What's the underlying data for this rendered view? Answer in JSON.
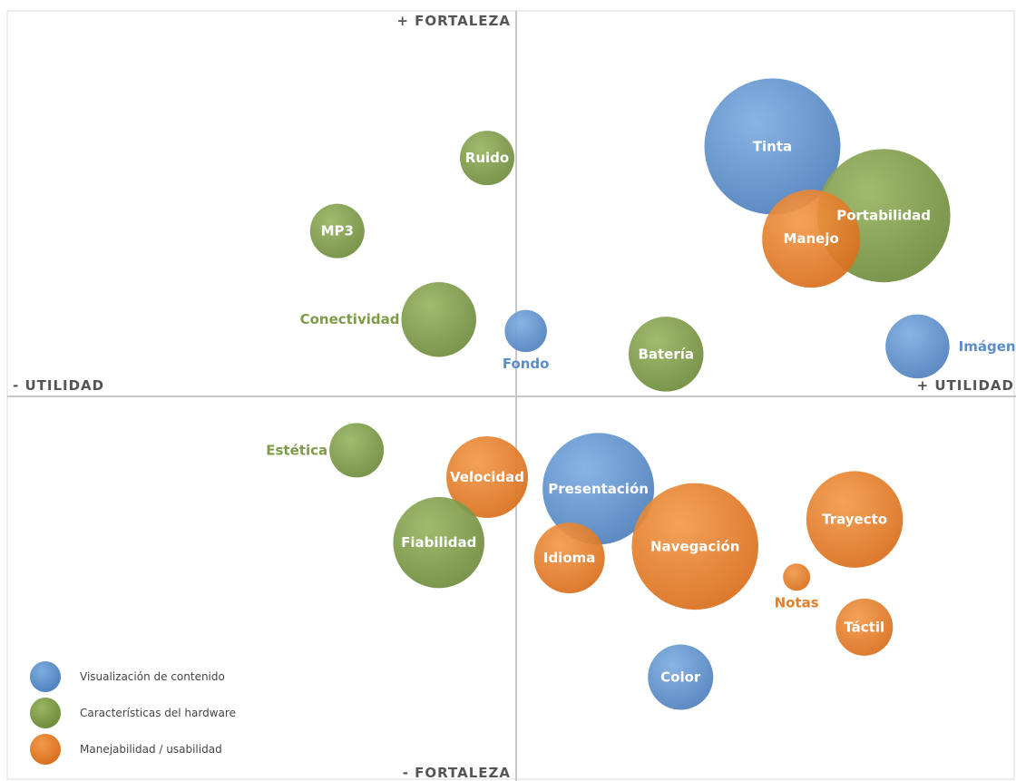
{
  "chart_data": {
    "type": "bubble",
    "axis_labels": {
      "x_positive": "+ UTILIDAD",
      "x_negative": "- UTILIDAD",
      "y_positive": "+ FORTALEZA",
      "y_negative": "- FORTALEZA"
    },
    "xlim": [
      -10,
      10
    ],
    "ylim": [
      -10,
      10
    ],
    "grid": false,
    "legend_position": "bottom-left",
    "groups": [
      {
        "key": "contenido",
        "name": "Visualización de contenido",
        "color": "#5b8ec9"
      },
      {
        "key": "hardware",
        "name": "Características del hardware",
        "color": "#7d9b48"
      },
      {
        "key": "usabilidad",
        "name": "Manejabilidad / usabilidad",
        "color": "#e37f2a"
      }
    ],
    "points": [
      {
        "label": "Tinta",
        "group": "contenido",
        "x": 5.3,
        "y": 6.5,
        "size": 1.0,
        "label_pos": "inside"
      },
      {
        "label": "Portabilidad",
        "group": "hardware",
        "x": 7.6,
        "y": 4.7,
        "size": 0.98,
        "label_pos": "inside"
      },
      {
        "label": "Manejo",
        "group": "usabilidad",
        "x": 6.1,
        "y": 4.1,
        "size": 0.72,
        "label_pos": "inside"
      },
      {
        "label": "Imágenes",
        "group": "contenido",
        "x": 8.3,
        "y": 1.3,
        "size": 0.47,
        "label_pos": "right"
      },
      {
        "label": "Batería",
        "group": "hardware",
        "x": 3.1,
        "y": 1.1,
        "size": 0.55,
        "label_pos": "inside"
      },
      {
        "label": "Fondo",
        "group": "contenido",
        "x": 0.2,
        "y": 1.7,
        "size": 0.31,
        "label_pos": "below"
      },
      {
        "label": "Conectividad",
        "group": "hardware",
        "x": -1.6,
        "y": 2.0,
        "size": 0.55,
        "label_pos": "left"
      },
      {
        "label": "MP3",
        "group": "hardware",
        "x": -3.7,
        "y": 4.3,
        "size": 0.4,
        "label_pos": "inside"
      },
      {
        "label": "Ruido",
        "group": "hardware",
        "x": -0.6,
        "y": 6.2,
        "size": 0.4,
        "label_pos": "inside"
      },
      {
        "label": "Estética",
        "group": "hardware",
        "x": -3.3,
        "y": -1.4,
        "size": 0.4,
        "label_pos": "left"
      },
      {
        "label": "Velocidad",
        "group": "usabilidad",
        "x": -0.6,
        "y": -2.1,
        "size": 0.6,
        "label_pos": "inside"
      },
      {
        "label": "Fiabilidad",
        "group": "hardware",
        "x": -1.6,
        "y": -3.8,
        "size": 0.67,
        "label_pos": "inside"
      },
      {
        "label": "Presentación",
        "group": "contenido",
        "x": 1.7,
        "y": -2.4,
        "size": 0.82,
        "label_pos": "inside"
      },
      {
        "label": "Idioma",
        "group": "usabilidad",
        "x": 1.1,
        "y": -4.2,
        "size": 0.52,
        "label_pos": "inside"
      },
      {
        "label": "Navegación",
        "group": "usabilidad",
        "x": 3.7,
        "y": -3.9,
        "size": 0.93,
        "label_pos": "inside"
      },
      {
        "label": "Trayecto",
        "group": "usabilidad",
        "x": 7.0,
        "y": -3.2,
        "size": 0.71,
        "label_pos": "inside"
      },
      {
        "label": "Notas",
        "group": "usabilidad",
        "x": 5.8,
        "y": -4.7,
        "size": 0.2,
        "label_pos": "below"
      },
      {
        "label": "Táctil",
        "group": "usabilidad",
        "x": 7.2,
        "y": -6.0,
        "size": 0.42,
        "label_pos": "inside"
      },
      {
        "label": "Color",
        "group": "contenido",
        "x": 3.4,
        "y": -7.3,
        "size": 0.48,
        "label_pos": "inside"
      }
    ]
  }
}
